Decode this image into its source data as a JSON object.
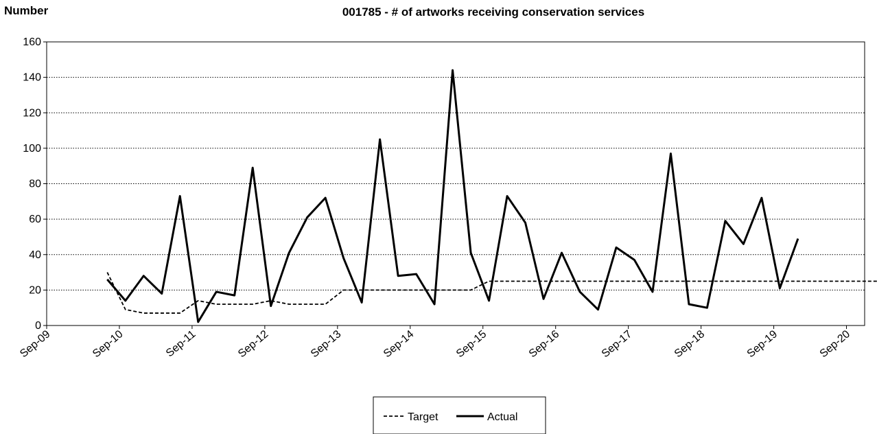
{
  "chart_data": {
    "type": "line",
    "title": "001785 - # of artworks receiving conservation services",
    "ylabel": "Number",
    "xlabel": "",
    "ylim": [
      0,
      160
    ],
    "yticks": [
      0,
      20,
      40,
      60,
      80,
      100,
      120,
      140,
      160
    ],
    "xlim": [
      "2009-09",
      "2020-12"
    ],
    "xticks": [
      "Sep-09",
      "Sep-10",
      "Sep-11",
      "Sep-12",
      "Sep-13",
      "Sep-14",
      "Sep-15",
      "Sep-16",
      "Sep-17",
      "Sep-18",
      "Sep-19",
      "Sep-20"
    ],
    "grid": "horizontal dotted",
    "legend_position": "bottom-center",
    "colors": {
      "line": "#000000",
      "grid": "#000000"
    },
    "series": [
      {
        "name": "Target",
        "style": "dashed",
        "points": [
          [
            "2010-07",
            30
          ],
          [
            "2010-10",
            9
          ],
          [
            "2011-01",
            7
          ],
          [
            "2011-04",
            7
          ],
          [
            "2011-07",
            7
          ],
          [
            "2011-10",
            14
          ],
          [
            "2012-01",
            12
          ],
          [
            "2012-04",
            12
          ],
          [
            "2012-07",
            12
          ],
          [
            "2012-10",
            14
          ],
          [
            "2013-01",
            12
          ],
          [
            "2013-04",
            12
          ],
          [
            "2013-07",
            12
          ],
          [
            "2013-10",
            20
          ],
          [
            "2014-01",
            20
          ],
          [
            "2014-04",
            20
          ],
          [
            "2014-07",
            20
          ],
          [
            "2014-10",
            20
          ],
          [
            "2015-01",
            20
          ],
          [
            "2015-04",
            20
          ],
          [
            "2015-07",
            20
          ],
          [
            "2015-10",
            25
          ],
          [
            "2016-01",
            25
          ],
          [
            "2016-04",
            25
          ],
          [
            "2016-07",
            25
          ],
          [
            "2016-10",
            25
          ],
          [
            "2017-01",
            25
          ],
          [
            "2017-04",
            25
          ],
          [
            "2017-07",
            25
          ],
          [
            "2017-10",
            25
          ],
          [
            "2018-01",
            25
          ],
          [
            "2018-04",
            25
          ],
          [
            "2018-07",
            25
          ],
          [
            "2018-10",
            25
          ],
          [
            "2019-01",
            25
          ],
          [
            "2019-04",
            25
          ],
          [
            "2019-07",
            25
          ],
          [
            "2019-10",
            25
          ],
          [
            "2020-01",
            25
          ],
          [
            "2020-04",
            25
          ],
          [
            "2020-07",
            25
          ],
          [
            "2020-10",
            25
          ],
          [
            "2021-01",
            25
          ],
          [
            "2021-04",
            25
          ]
        ]
      },
      {
        "name": "Actual",
        "style": "solid",
        "points": [
          [
            "2010-07",
            26
          ],
          [
            "2010-10",
            14
          ],
          [
            "2011-01",
            28
          ],
          [
            "2011-04",
            18
          ],
          [
            "2011-07",
            73
          ],
          [
            "2011-10",
            2
          ],
          [
            "2012-01",
            19
          ],
          [
            "2012-04",
            17
          ],
          [
            "2012-07",
            89
          ],
          [
            "2012-10",
            11
          ],
          [
            "2013-01",
            41
          ],
          [
            "2013-04",
            61
          ],
          [
            "2013-07",
            72
          ],
          [
            "2013-10",
            38
          ],
          [
            "2014-01",
            13
          ],
          [
            "2014-04",
            105
          ],
          [
            "2014-07",
            28
          ],
          [
            "2014-10",
            29
          ],
          [
            "2015-01",
            12
          ],
          [
            "2015-04",
            144
          ],
          [
            "2015-07",
            41
          ],
          [
            "2015-10",
            14
          ],
          [
            "2016-01",
            73
          ],
          [
            "2016-04",
            58
          ],
          [
            "2016-07",
            15
          ],
          [
            "2016-10",
            41
          ],
          [
            "2017-01",
            19
          ],
          [
            "2017-04",
            9
          ],
          [
            "2017-07",
            44
          ],
          [
            "2017-10",
            37
          ],
          [
            "2018-01",
            19
          ],
          [
            "2018-04",
            97
          ],
          [
            "2018-07",
            12
          ],
          [
            "2018-10",
            10
          ],
          [
            "2019-01",
            59
          ],
          [
            "2019-04",
            46
          ],
          [
            "2019-07",
            72
          ],
          [
            "2019-10",
            21
          ],
          [
            "2020-01",
            49
          ]
        ]
      }
    ]
  }
}
